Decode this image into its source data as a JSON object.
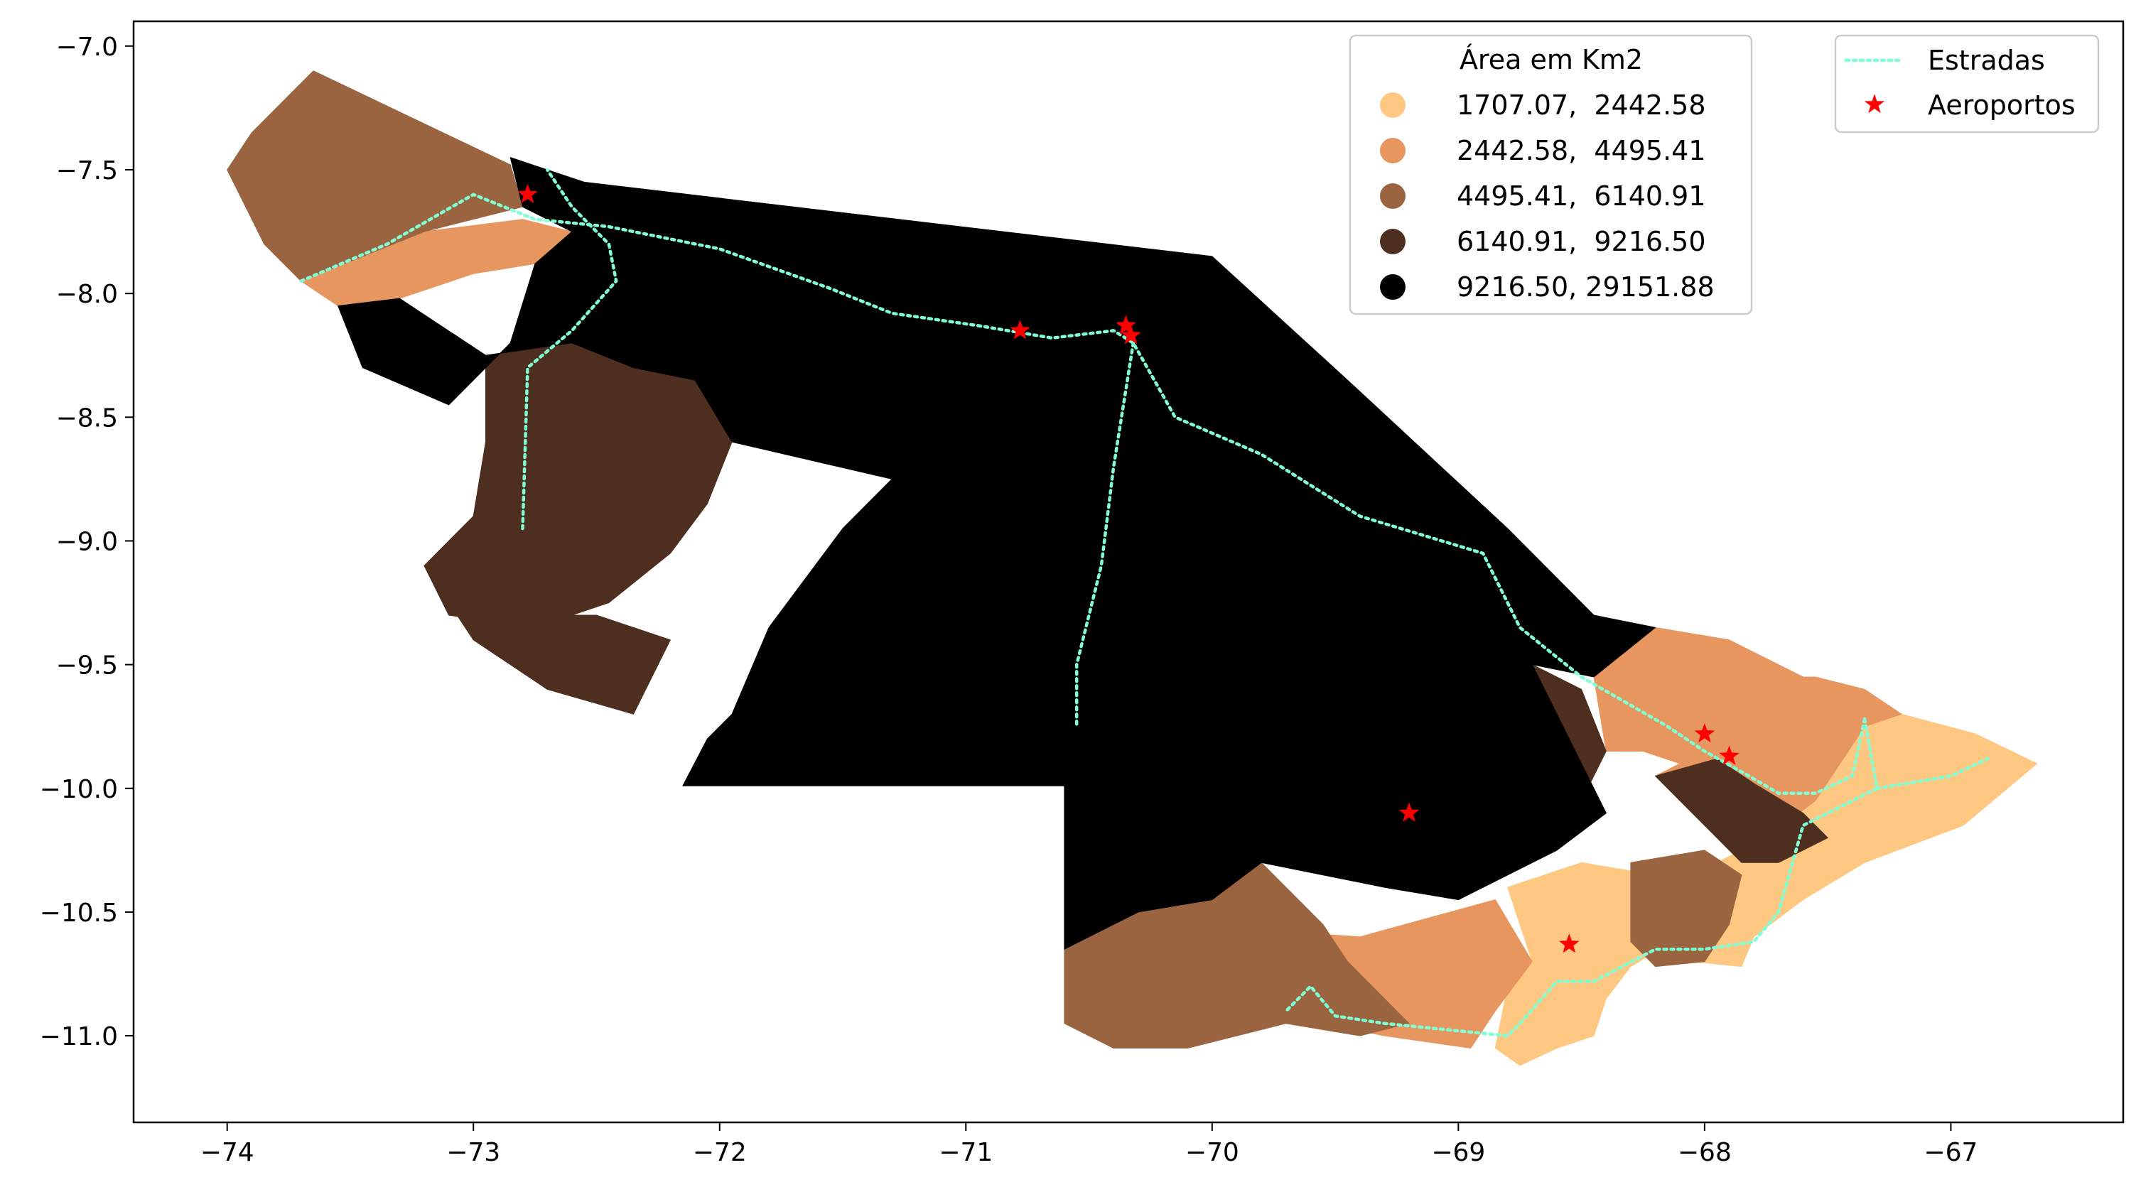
{
  "chart_data": {
    "type": "choropleth",
    "xlim": [
      -74.38,
      -66.3
    ],
    "ylim": [
      -11.35,
      -6.9
    ],
    "xticks": [
      {
        "value": -74,
        "label": "−74"
      },
      {
        "value": -73,
        "label": "−73"
      },
      {
        "value": -72,
        "label": "−72"
      },
      {
        "value": -71,
        "label": "−71"
      },
      {
        "value": -70,
        "label": "−70"
      },
      {
        "value": -69,
        "label": "−69"
      },
      {
        "value": -68,
        "label": "−68"
      },
      {
        "value": -67,
        "label": "−67"
      }
    ],
    "yticks": [
      {
        "value": -7.0,
        "label": "−7.0"
      },
      {
        "value": -7.5,
        "label": "−7.5"
      },
      {
        "value": -8.0,
        "label": "−8.0"
      },
      {
        "value": -8.5,
        "label": "−8.5"
      },
      {
        "value": -9.0,
        "label": "−9.0"
      },
      {
        "value": -9.5,
        "label": "−9.5"
      },
      {
        "value": -10.0,
        "label": "−10.0"
      },
      {
        "value": -10.5,
        "label": "−10.5"
      },
      {
        "value": -11.0,
        "label": "−11.0"
      }
    ],
    "legend_area": {
      "title": "Área em Km2",
      "placement": "top-right",
      "classes": [
        {
          "label": "1707.07,  2442.58",
          "color": "#fec883"
        },
        {
          "label": "2442.58,  4495.41",
          "color": "#e89660"
        },
        {
          "label": "4495.41,  6140.91",
          "color": "#9b6440"
        },
        {
          "label": "6140.91,  9216.50",
          "color": "#4e2f1f"
        },
        {
          "label": "9216.50, 29151.88",
          "color": "#000000"
        }
      ]
    },
    "legend_layers": {
      "placement": "top-right",
      "items": [
        {
          "label": "Estradas",
          "kind": "line",
          "color": "#7fffd4"
        },
        {
          "label": "Aeroportos",
          "kind": "star",
          "color": "#ff0000"
        }
      ]
    },
    "regions": [
      {
        "class": 0,
        "polygon": [
          [
            -68.8,
            -10.4
          ],
          [
            -68.5,
            -10.3
          ],
          [
            -68.2,
            -10.35
          ],
          [
            -67.95,
            -10.3
          ],
          [
            -67.75,
            -10.2
          ],
          [
            -67.55,
            -10.05
          ],
          [
            -67.35,
            -9.75
          ],
          [
            -67.2,
            -9.7
          ],
          [
            -66.9,
            -9.78
          ],
          [
            -66.65,
            -9.9
          ],
          [
            -66.95,
            -10.15
          ],
          [
            -67.35,
            -10.3
          ],
          [
            -67.6,
            -10.45
          ],
          [
            -67.8,
            -10.6
          ],
          [
            -67.85,
            -10.72
          ],
          [
            -68.05,
            -10.7
          ],
          [
            -68.2,
            -10.66
          ],
          [
            -68.3,
            -10.72
          ],
          [
            -68.4,
            -10.85
          ],
          [
            -68.45,
            -11.0
          ],
          [
            -68.6,
            -11.05
          ],
          [
            -68.75,
            -11.12
          ],
          [
            -68.85,
            -11.05
          ],
          [
            -68.8,
            -10.8
          ],
          [
            -68.7,
            -10.7
          ]
        ]
      },
      {
        "class": 1,
        "polygon": [
          [
            -68.1,
            -9.9
          ],
          [
            -68.0,
            -9.65
          ],
          [
            -67.7,
            -9.55
          ],
          [
            -67.55,
            -9.55
          ],
          [
            -67.35,
            -9.6
          ],
          [
            -67.2,
            -9.7
          ],
          [
            -67.35,
            -9.75
          ],
          [
            -67.55,
            -10.05
          ],
          [
            -67.75,
            -10.2
          ],
          [
            -68.05,
            -10.1
          ],
          [
            -68.2,
            -9.95
          ]
        ]
      },
      {
        "class": 1,
        "polygon": [
          [
            -68.45,
            -9.55
          ],
          [
            -68.2,
            -9.35
          ],
          [
            -67.9,
            -9.4
          ],
          [
            -67.6,
            -9.55
          ],
          [
            -68.0,
            -9.65
          ],
          [
            -68.1,
            -9.9
          ],
          [
            -68.25,
            -9.85
          ],
          [
            -68.4,
            -9.85
          ]
        ]
      },
      {
        "class": 1,
        "polygon": [
          [
            -69.4,
            -10.6
          ],
          [
            -68.85,
            -10.45
          ],
          [
            -68.7,
            -10.7
          ],
          [
            -68.85,
            -10.9
          ],
          [
            -68.95,
            -11.05
          ],
          [
            -69.3,
            -11.0
          ],
          [
            -69.55,
            -10.95
          ],
          [
            -69.75,
            -10.85
          ],
          [
            -69.9,
            -10.72
          ],
          [
            -69.7,
            -10.58
          ]
        ]
      },
      {
        "class": 1,
        "polygon": [
          [
            -73.7,
            -7.95
          ],
          [
            -73.2,
            -7.75
          ],
          [
            -72.8,
            -7.7
          ],
          [
            -72.6,
            -7.75
          ],
          [
            -72.75,
            -7.88
          ],
          [
            -73.0,
            -7.92
          ],
          [
            -73.3,
            -8.02
          ],
          [
            -73.55,
            -8.05
          ]
        ]
      },
      {
        "class": 2,
        "polygon": [
          [
            -73.65,
            -7.1
          ],
          [
            -72.85,
            -7.48
          ],
          [
            -72.8,
            -7.65
          ],
          [
            -73.2,
            -7.75
          ],
          [
            -73.7,
            -7.95
          ],
          [
            -73.85,
            -7.8
          ],
          [
            -74.0,
            -7.5
          ],
          [
            -73.9,
            -7.35
          ]
        ]
      },
      {
        "class": 2,
        "polygon": [
          [
            -71.3,
            -8.75
          ],
          [
            -71.5,
            -8.95
          ],
          [
            -71.8,
            -9.35
          ],
          [
            -71.95,
            -9.7
          ],
          [
            -71.7,
            -9.85
          ],
          [
            -71.45,
            -9.6
          ],
          [
            -71.3,
            -9.2
          ],
          [
            -71.25,
            -8.9
          ]
        ]
      },
      {
        "class": 2,
        "polygon": [
          [
            -70.6,
            -10.65
          ],
          [
            -70.3,
            -10.5
          ],
          [
            -70.0,
            -10.45
          ],
          [
            -69.8,
            -10.3
          ],
          [
            -69.55,
            -10.55
          ],
          [
            -69.45,
            -10.7
          ],
          [
            -69.2,
            -10.95
          ],
          [
            -69.4,
            -11.0
          ],
          [
            -69.7,
            -10.95
          ],
          [
            -70.1,
            -11.05
          ],
          [
            -70.4,
            -11.05
          ],
          [
            -70.6,
            -10.95
          ]
        ]
      },
      {
        "class": 2,
        "polygon": [
          [
            -68.3,
            -10.3
          ],
          [
            -68.0,
            -10.25
          ],
          [
            -67.85,
            -10.35
          ],
          [
            -67.9,
            -10.55
          ],
          [
            -68.0,
            -10.7
          ],
          [
            -68.2,
            -10.72
          ],
          [
            -68.3,
            -10.62
          ]
        ]
      },
      {
        "class": 2,
        "polygon": [
          [
            -70.45,
            -9.6
          ],
          [
            -70.25,
            -9.2
          ],
          [
            -69.9,
            -9.05
          ],
          [
            -69.8,
            -9.25
          ],
          [
            -70.05,
            -9.5
          ],
          [
            -70.3,
            -9.8
          ],
          [
            -70.45,
            -9.85
          ]
        ]
      },
      {
        "class": 3,
        "polygon": [
          [
            -72.95,
            -8.25
          ],
          [
            -72.6,
            -8.2
          ],
          [
            -72.35,
            -8.3
          ],
          [
            -72.1,
            -8.35
          ],
          [
            -71.95,
            -8.6
          ],
          [
            -72.05,
            -8.85
          ],
          [
            -72.2,
            -9.05
          ],
          [
            -72.45,
            -9.25
          ],
          [
            -72.75,
            -9.35
          ],
          [
            -73.1,
            -9.3
          ],
          [
            -73.2,
            -9.1
          ],
          [
            -73.0,
            -8.9
          ],
          [
            -72.95,
            -8.6
          ]
        ]
      },
      {
        "class": 3,
        "polygon": [
          [
            -73.2,
            -9.1
          ],
          [
            -72.9,
            -9.3
          ],
          [
            -72.5,
            -9.3
          ],
          [
            -72.2,
            -9.4
          ],
          [
            -72.35,
            -9.7
          ],
          [
            -72.7,
            -9.6
          ],
          [
            -73.0,
            -9.4
          ]
        ]
      },
      {
        "class": 3,
        "polygon": [
          [
            -68.7,
            -9.5
          ],
          [
            -68.5,
            -9.6
          ],
          [
            -68.4,
            -9.85
          ],
          [
            -68.5,
            -10.05
          ],
          [
            -68.8,
            -10.2
          ],
          [
            -69.0,
            -10.3
          ],
          [
            -69.3,
            -10.4
          ],
          [
            -69.0,
            -10.45
          ],
          [
            -68.8,
            -10.35
          ],
          [
            -68.6,
            -10.25
          ],
          [
            -68.4,
            -10.1
          ]
        ]
      },
      {
        "class": 3,
        "polygon": [
          [
            -68.2,
            -9.95
          ],
          [
            -68.05,
            -10.1
          ],
          [
            -67.85,
            -10.3
          ],
          [
            -67.7,
            -10.3
          ],
          [
            -67.5,
            -10.2
          ],
          [
            -67.6,
            -10.1
          ],
          [
            -67.8,
            -9.98
          ],
          [
            -67.95,
            -9.88
          ]
        ]
      },
      {
        "class": 3,
        "polygon": [
          [
            -70.45,
            -9.45
          ],
          [
            -70.1,
            -9.3
          ],
          [
            -69.8,
            -9.2
          ],
          [
            -69.9,
            -9.5
          ],
          [
            -70.15,
            -9.8
          ],
          [
            -70.45,
            -10.05
          ]
        ]
      },
      {
        "class": 4,
        "polygon": [
          [
            -72.85,
            -7.45
          ],
          [
            -72.55,
            -7.55
          ],
          [
            -70.0,
            -7.85
          ],
          [
            -69.45,
            -8.35
          ],
          [
            -68.8,
            -8.95
          ],
          [
            -68.45,
            -9.3
          ],
          [
            -68.2,
            -9.35
          ],
          [
            -68.45,
            -9.55
          ],
          [
            -68.7,
            -9.5
          ],
          [
            -68.4,
            -10.1
          ],
          [
            -68.6,
            -10.25
          ],
          [
            -68.8,
            -10.35
          ],
          [
            -69.0,
            -10.45
          ],
          [
            -69.3,
            -10.4
          ],
          [
            -69.8,
            -10.3
          ],
          [
            -70.0,
            -10.45
          ],
          [
            -70.3,
            -10.5
          ],
          [
            -70.6,
            -10.65
          ],
          [
            -70.6,
            -9.4
          ],
          [
            -70.45,
            -9.45
          ],
          [
            -70.45,
            -9.85
          ],
          [
            -70.6,
            -9.9
          ],
          [
            -70.6,
            -9.99
          ],
          [
            -72.15,
            -9.99
          ],
          [
            -72.05,
            -9.8
          ],
          [
            -71.95,
            -9.7
          ],
          [
            -71.8,
            -9.35
          ],
          [
            -71.5,
            -8.95
          ],
          [
            -71.3,
            -8.75
          ],
          [
            -71.95,
            -8.6
          ],
          [
            -72.1,
            -8.35
          ],
          [
            -72.35,
            -8.3
          ],
          [
            -72.6,
            -8.2
          ],
          [
            -72.95,
            -8.25
          ],
          [
            -73.3,
            -8.02
          ],
          [
            -73.55,
            -8.05
          ],
          [
            -73.45,
            -8.3
          ],
          [
            -73.1,
            -8.45
          ],
          [
            -72.85,
            -8.2
          ],
          [
            -72.75,
            -7.88
          ],
          [
            -72.6,
            -7.75
          ],
          [
            -72.8,
            -7.65
          ]
        ]
      }
    ],
    "roads": [
      [
        [
          -73.7,
          -7.95
        ],
        [
          -73.35,
          -7.8
        ],
        [
          -73.0,
          -7.6
        ],
        [
          -72.75,
          -7.7
        ],
        [
          -72.45,
          -7.73
        ],
        [
          -72.0,
          -7.82
        ],
        [
          -71.55,
          -7.98
        ],
        [
          -71.3,
          -8.08
        ],
        [
          -70.95,
          -8.13
        ],
        [
          -70.65,
          -8.18
        ],
        [
          -70.4,
          -8.15
        ],
        [
          -70.32,
          -8.2
        ],
        [
          -70.15,
          -8.5
        ],
        [
          -69.8,
          -8.65
        ],
        [
          -69.4,
          -8.9
        ],
        [
          -68.9,
          -9.05
        ],
        [
          -68.75,
          -9.35
        ],
        [
          -68.5,
          -9.55
        ],
        [
          -68.15,
          -9.75
        ],
        [
          -68.0,
          -9.85
        ],
        [
          -67.82,
          -9.95
        ],
        [
          -67.7,
          -10.02
        ],
        [
          -67.55,
          -10.02
        ],
        [
          -67.4,
          -9.95
        ],
        [
          -67.35,
          -9.72
        ]
      ],
      [
        [
          -72.8,
          -8.95
        ],
        [
          -72.78,
          -8.3
        ],
        [
          -72.6,
          -8.15
        ],
        [
          -72.42,
          -7.95
        ],
        [
          -72.45,
          -7.8
        ],
        [
          -72.6,
          -7.65
        ],
        [
          -72.7,
          -7.5
        ]
      ],
      [
        [
          -70.32,
          -8.2
        ],
        [
          -70.4,
          -8.7
        ],
        [
          -70.45,
          -9.1
        ],
        [
          -70.55,
          -9.5
        ],
        [
          -70.55,
          -9.75
        ]
      ],
      [
        [
          -67.35,
          -9.72
        ],
        [
          -67.3,
          -10.0
        ],
        [
          -67.6,
          -10.15
        ],
        [
          -67.7,
          -10.5
        ],
        [
          -67.8,
          -10.62
        ],
        [
          -68.0,
          -10.65
        ],
        [
          -68.2,
          -10.65
        ],
        [
          -68.45,
          -10.78
        ],
        [
          -68.6,
          -10.78
        ],
        [
          -68.75,
          -10.95
        ],
        [
          -68.8,
          -11.0
        ],
        [
          -69.3,
          -10.95
        ],
        [
          -69.5,
          -10.92
        ],
        [
          -69.6,
          -10.8
        ],
        [
          -69.7,
          -10.9
        ]
      ],
      [
        [
          -67.3,
          -10.0
        ],
        [
          -67.0,
          -9.95
        ],
        [
          -66.85,
          -9.88
        ]
      ]
    ],
    "airports": [
      {
        "lon": -72.78,
        "lat": -7.6
      },
      {
        "lon": -70.78,
        "lat": -8.15
      },
      {
        "lon": -70.35,
        "lat": -8.13
      },
      {
        "lon": -70.33,
        "lat": -8.17
      },
      {
        "lon": -69.2,
        "lat": -10.1
      },
      {
        "lon": -68.55,
        "lat": -10.63
      },
      {
        "lon": -68.0,
        "lat": -9.78
      },
      {
        "lon": -67.9,
        "lat": -9.87
      }
    ]
  }
}
